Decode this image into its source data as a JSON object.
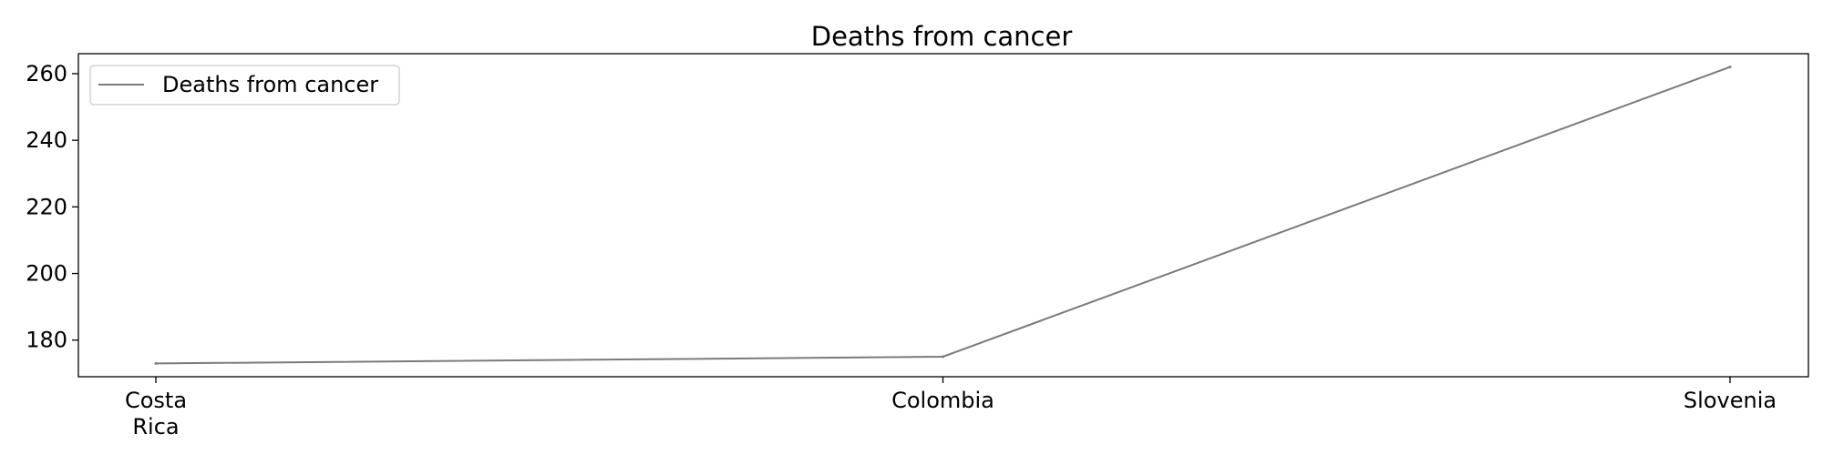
{
  "chart_data": {
    "type": "line",
    "title": "Deaths from cancer",
    "xlabel": "",
    "ylabel": "",
    "categories": [
      "Costa Rica",
      "Colombia",
      "Slovenia"
    ],
    "category_lines": [
      [
        "Costa",
        "Rica"
      ],
      [
        "Colombia"
      ],
      [
        "Slovenia"
      ]
    ],
    "series": [
      {
        "name": "Deaths from cancer",
        "values": [
          173,
          175,
          262
        ],
        "color": "#7a7a7a"
      }
    ],
    "ylim": [
      169,
      266
    ],
    "yticks": [
      180,
      200,
      220,
      240,
      260
    ],
    "grid": false,
    "legend": "top-left"
  }
}
